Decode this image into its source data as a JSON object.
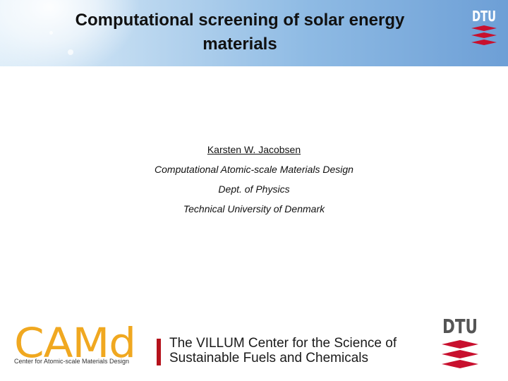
{
  "slide": {
    "title_line1": "Computational screening of solar energy",
    "title_line2": "materials",
    "author": "Karsten W. Jacobsen",
    "affiliation_1": "Computational Atomic-scale Materials Design",
    "affiliation_2": "Dept. of Physics",
    "affiliation_3": "Technical University of Denmark"
  },
  "logos": {
    "dtu_top": "DTU",
    "dtu_bottom": "DTU",
    "camd_name": "CAMd",
    "camd_subtitle": "Center for Atomic-scale Materials Design",
    "villum_line1": "The VILLUM Center for the Science of",
    "villum_line2": "Sustainable Fuels and Chemicals"
  },
  "colors": {
    "dtu_red": "#c8102e",
    "camd_orange": "#f0a820",
    "villum_red": "#b5121b"
  }
}
